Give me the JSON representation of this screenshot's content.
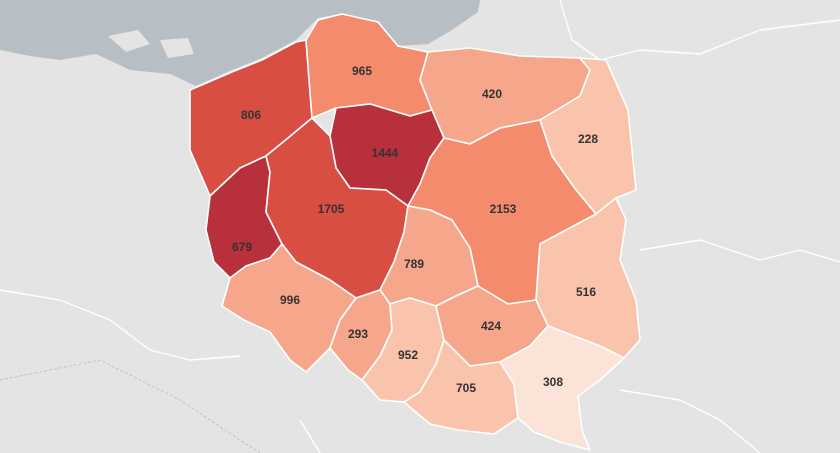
{
  "colors": {
    "land": "#e4e4e4",
    "sea": "#b8bfc4",
    "level_1": "#fbe3d8",
    "level_2": "#f9c3ac",
    "level_3": "#f6a68a",
    "level_4": "#f38b6c",
    "level_5": "#d94e43",
    "level_6": "#b8303b"
  },
  "regions": [
    {
      "id": "zachodniopomorskie",
      "value": "806",
      "level": "level_5"
    },
    {
      "id": "pomorskie",
      "value": "965",
      "level": "level_4"
    },
    {
      "id": "warminsko-mazurskie",
      "value": "420",
      "level": "level_3"
    },
    {
      "id": "podlaskie",
      "value": "228",
      "level": "level_2"
    },
    {
      "id": "kujawsko-pomorskie",
      "value": "1444",
      "level": "level_6"
    },
    {
      "id": "lubuskie",
      "value": "679",
      "level": "level_6"
    },
    {
      "id": "wielkopolskie",
      "value": "1705",
      "level": "level_5"
    },
    {
      "id": "mazowieckie",
      "value": "2153",
      "level": "level_4"
    },
    {
      "id": "lodzkie",
      "value": "789",
      "level": "level_3"
    },
    {
      "id": "lubelskie",
      "value": "516",
      "level": "level_2"
    },
    {
      "id": "dolnoslaskie",
      "value": "996",
      "level": "level_3"
    },
    {
      "id": "opolskie",
      "value": "293",
      "level": "level_3"
    },
    {
      "id": "slaskie",
      "value": "952",
      "level": "level_2"
    },
    {
      "id": "swietokrzyskie",
      "value": "424",
      "level": "level_3"
    },
    {
      "id": "malopolskie",
      "value": "705",
      "level": "level_2"
    },
    {
      "id": "podkarpackie",
      "value": "308",
      "level": "level_1"
    }
  ]
}
